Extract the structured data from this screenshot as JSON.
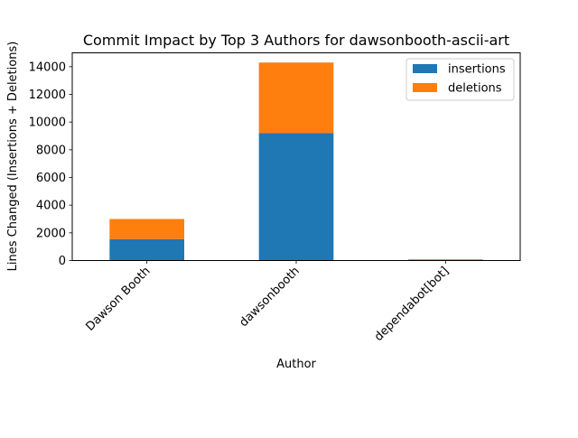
{
  "chart_data": {
    "type": "bar",
    "stacked": true,
    "title": "Commit Impact by Top 3 Authors for dawsonbooth-ascii-art",
    "xlabel": "Author",
    "ylabel": "Lines Changed (Insertions + Deletions)",
    "categories": [
      "Dawson Booth",
      "dawsonbooth",
      "dependabot[bot]"
    ],
    "series": [
      {
        "name": "insertions",
        "values": [
          1550,
          9200,
          40
        ],
        "color": "#1f77b4"
      },
      {
        "name": "deletions",
        "values": [
          1450,
          5100,
          60
        ],
        "color": "#ff7f0e"
      }
    ],
    "ylim": [
      0,
      15000
    ],
    "yticks": [
      0,
      2000,
      4000,
      6000,
      8000,
      10000,
      12000,
      14000
    ],
    "grid": false,
    "legend_position": "top-right"
  }
}
